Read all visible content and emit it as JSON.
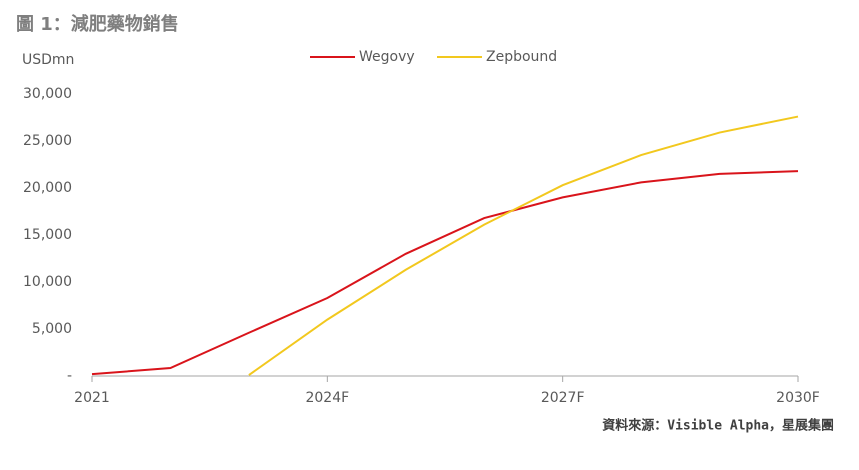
{
  "chart_data": {
    "type": "line",
    "title": "圖 1：減肥藥物銷售",
    "ylabel": "USDmn",
    "source": "資料來源：Visible Alpha，星展集團",
    "categories": [
      "2021",
      null,
      null,
      "2024F",
      null,
      null,
      "2027F",
      null,
      null,
      "2030F"
    ],
    "series": [
      {
        "name": "Wegovy",
        "color": "#d9141b",
        "values": [
          200,
          850,
          4600,
          8300,
          13000,
          16800,
          19000,
          20600,
          21500,
          21800
        ]
      },
      {
        "name": "Zepbound",
        "color": "#f2c81e",
        "values": [
          null,
          null,
          100,
          6000,
          11300,
          16100,
          20300,
          23500,
          25900,
          27600
        ]
      }
    ],
    "ylim": [
      0,
      30000
    ],
    "yticks": [
      {
        "value": 0,
        "label": "-"
      },
      {
        "value": 5000,
        "label": "5,000"
      },
      {
        "value": 10000,
        "label": "10,000"
      },
      {
        "value": 15000,
        "label": "15,000"
      },
      {
        "value": 20000,
        "label": "20,000"
      },
      {
        "value": 25000,
        "label": "25,000"
      },
      {
        "value": 30000,
        "label": "30,000"
      }
    ],
    "legend": "top",
    "grid": false
  }
}
